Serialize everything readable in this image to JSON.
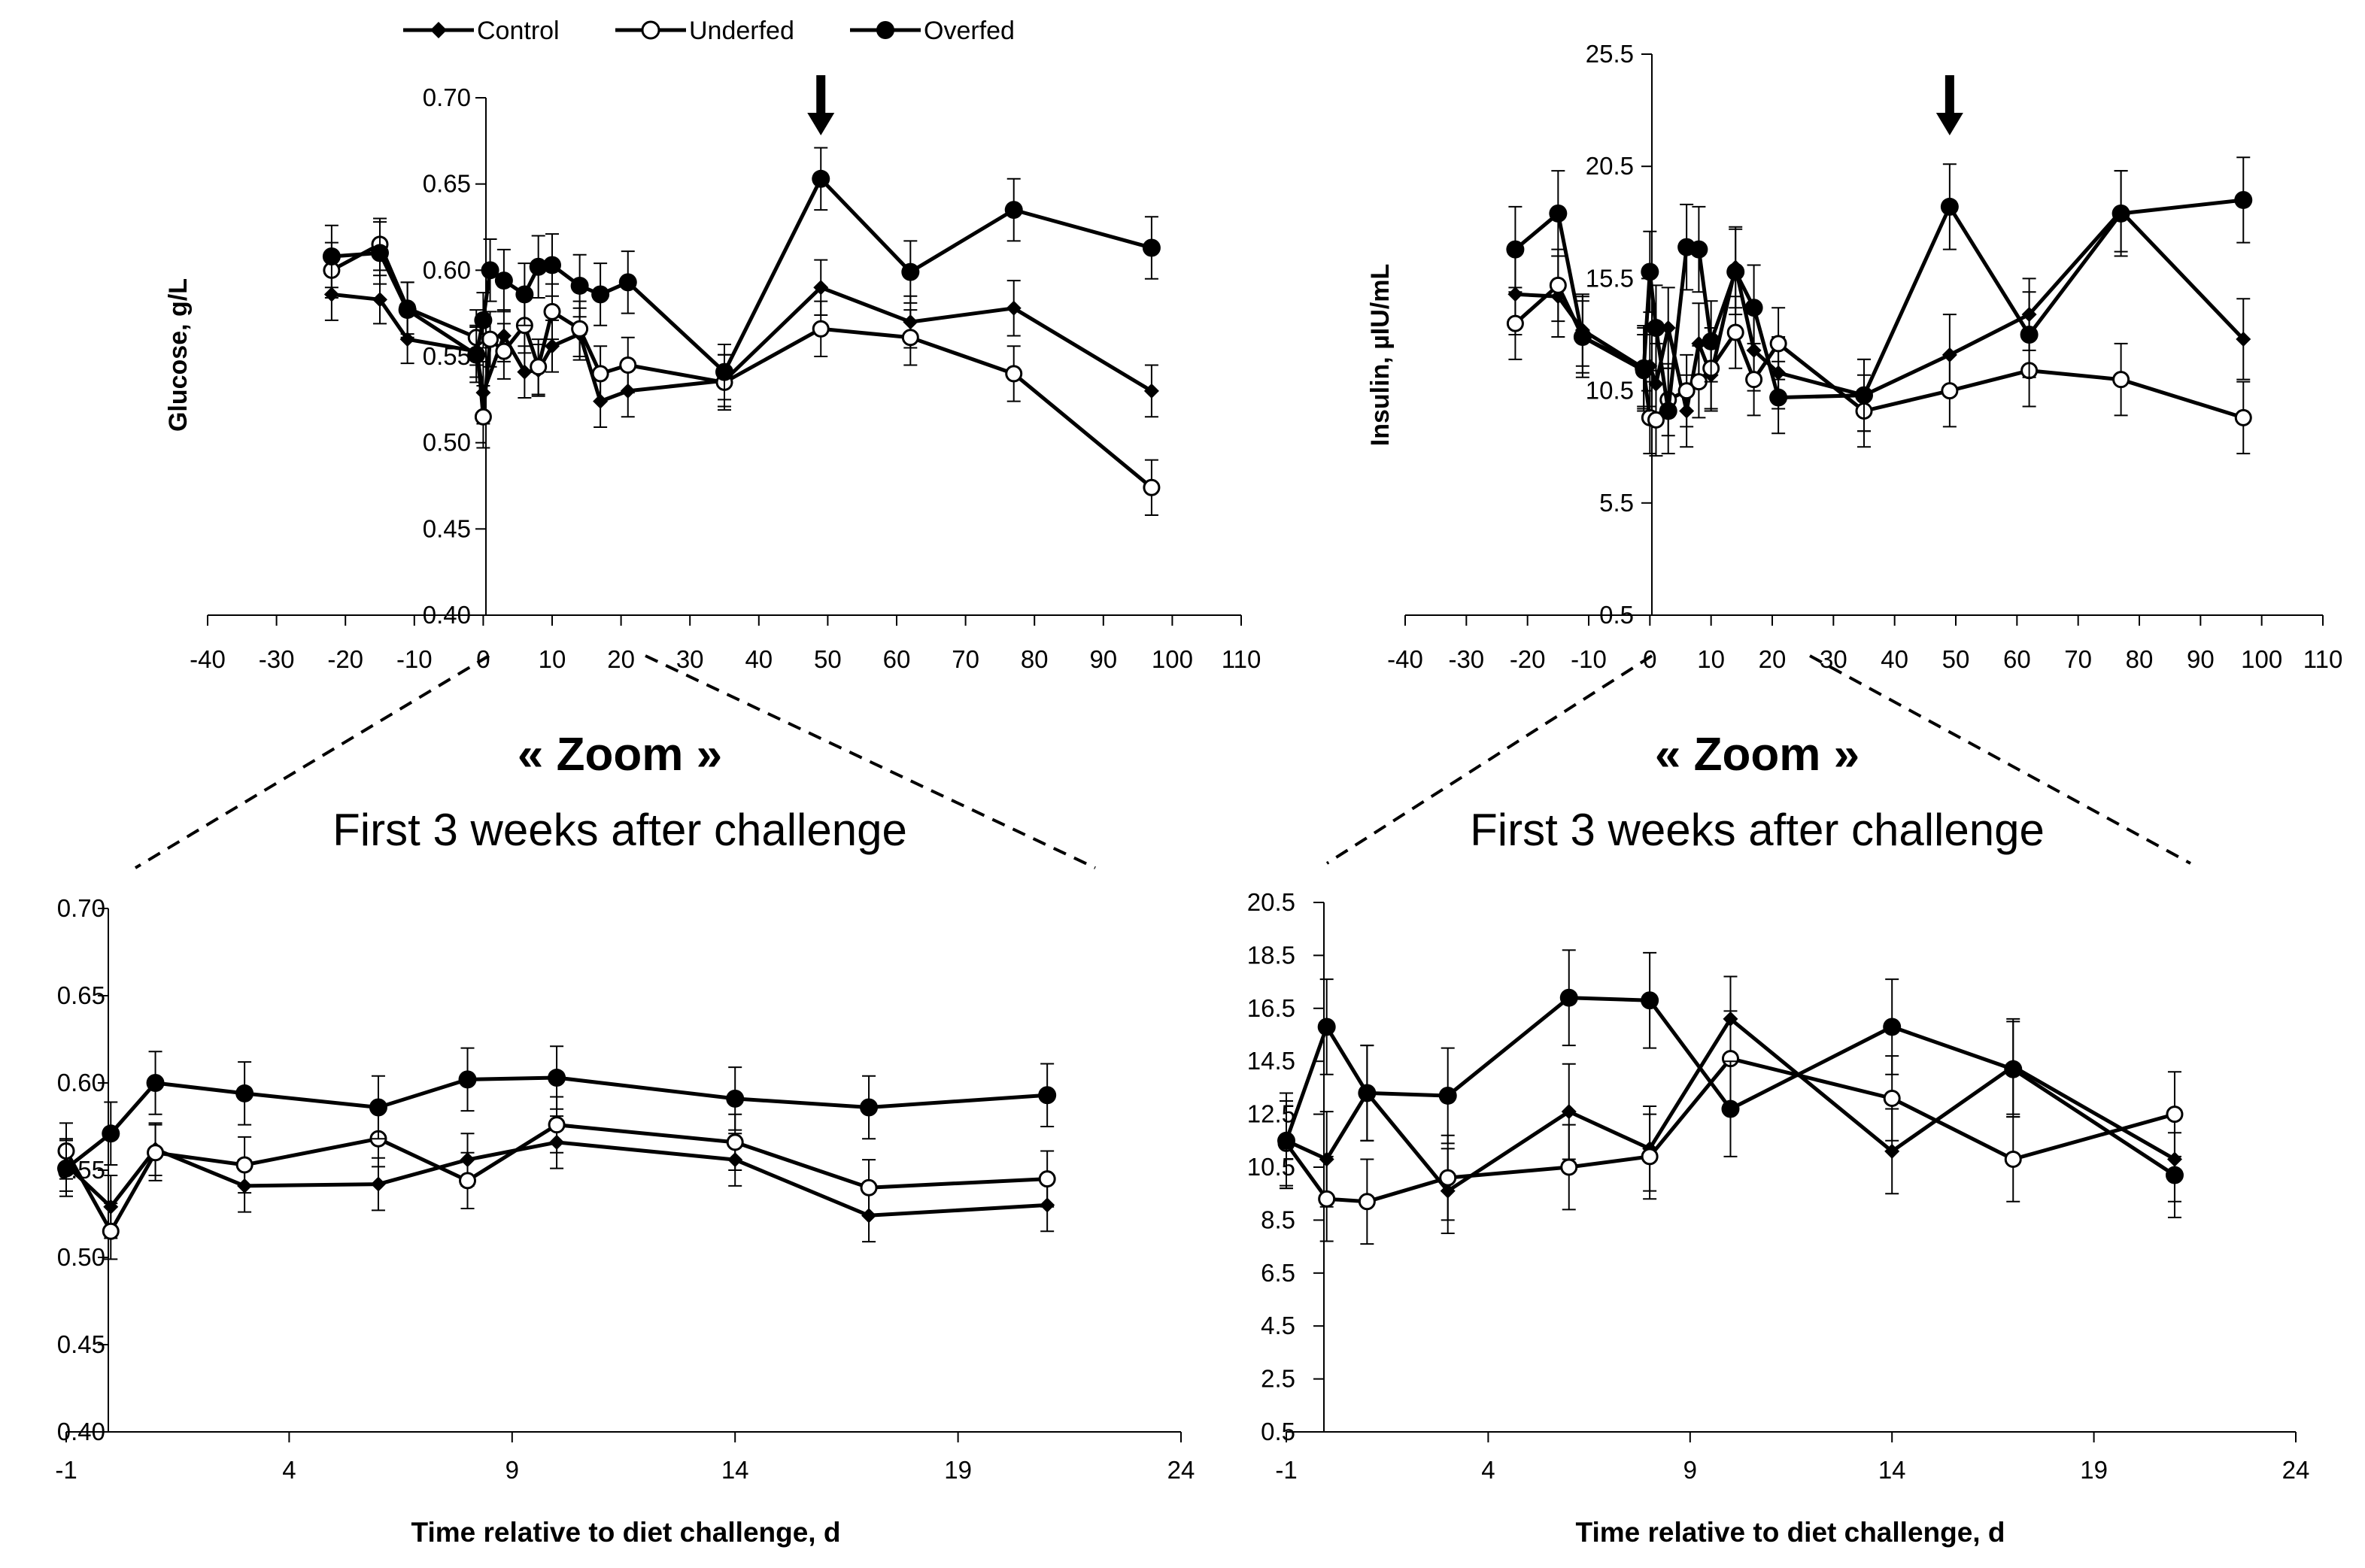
{
  "legend": [
    "Control",
    "Underfed",
    "Overfed"
  ],
  "zoom_title": "« Zoom »",
  "zoom_subtitle": "First 3 weeks after challenge",
  "chart_data": [
    {
      "id": "glucose-full",
      "type": "line",
      "ylabel": "Glucose, g/L",
      "xlabel": "",
      "xlim": [
        -40,
        110
      ],
      "ylim": [
        0.4,
        0.7
      ],
      "xticks": [
        -40,
        -30,
        -20,
        -10,
        0,
        10,
        20,
        30,
        40,
        50,
        60,
        70,
        80,
        90,
        100,
        110
      ],
      "yticks": [
        0.4,
        0.45,
        0.5,
        0.55,
        0.6,
        0.65,
        0.7
      ],
      "ydecimals": 2,
      "arrow_x": 49,
      "series": [
        {
          "name": "Control",
          "marker": "diamond",
          "x": [
            -22,
            -15,
            -11,
            -1,
            0,
            3,
            6,
            8,
            10,
            14,
            17,
            21,
            35,
            49,
            62,
            77,
            97
          ],
          "y": [
            0.586,
            0.583,
            0.56,
            0.553,
            0.529,
            0.562,
            0.541,
            0.542,
            0.556,
            0.563,
            0.524,
            0.53,
            0.536,
            0.59,
            0.57,
            0.578,
            0.53
          ],
          "err": [
            0.015,
            0.014,
            0.014,
            0.015,
            0.018,
            0.015,
            0.015,
            0.015,
            0.015,
            0.015,
            0.015,
            0.015,
            0.015,
            0.016,
            0.015,
            0.016,
            0.015
          ]
        },
        {
          "name": "Underfed",
          "marker": "open-circle",
          "x": [
            -22,
            -15,
            -11,
            -1,
            0,
            1,
            3,
            6,
            8,
            10,
            14,
            17,
            21,
            35,
            49,
            62,
            77,
            97
          ],
          "y": [
            0.6,
            0.615,
            0.578,
            0.561,
            0.515,
            0.56,
            0.553,
            0.568,
            0.544,
            0.576,
            0.566,
            0.54,
            0.545,
            0.535,
            0.566,
            0.561,
            0.54,
            0.474
          ],
          "err": [
            0.016,
            0.015,
            0.015,
            0.016,
            0.018,
            0.016,
            0.016,
            0.016,
            0.016,
            0.016,
            0.016,
            0.016,
            0.016,
            0.016,
            0.016,
            0.016,
            0.016,
            0.016
          ]
        },
        {
          "name": "Overfed",
          "marker": "filled-circle",
          "x": [
            -22,
            -15,
            -11,
            -1,
            0,
            1,
            3,
            6,
            8,
            10,
            14,
            17,
            21,
            35,
            49,
            62,
            77,
            97
          ],
          "y": [
            0.608,
            0.61,
            0.577,
            0.551,
            0.571,
            0.6,
            0.594,
            0.586,
            0.602,
            0.603,
            0.591,
            0.586,
            0.593,
            0.541,
            0.653,
            0.599,
            0.635,
            0.613
          ],
          "err": [
            0.018,
            0.018,
            0.016,
            0.016,
            0.016,
            0.018,
            0.018,
            0.018,
            0.018,
            0.018,
            0.018,
            0.018,
            0.018,
            0.016,
            0.018,
            0.018,
            0.018,
            0.018
          ]
        }
      ]
    },
    {
      "id": "insulin-full",
      "type": "line",
      "ylabel": "Insulin, µIU/mL",
      "xlabel": "",
      "xlim": [
        -40,
        110
      ],
      "ylim": [
        0.5,
        25.5
      ],
      "xticks": [
        -40,
        -30,
        -20,
        -10,
        0,
        10,
        20,
        30,
        40,
        50,
        60,
        70,
        80,
        90,
        100,
        110
      ],
      "yticks": [
        0.5,
        5.5,
        10.5,
        15.5,
        20.5,
        25.5
      ],
      "ydecimals": 1,
      "arrow_x": 49,
      "series": [
        {
          "name": "Control",
          "marker": "diamond",
          "x": [
            -22,
            -15,
            -11,
            -1,
            0,
            1,
            3,
            6,
            8,
            10,
            14,
            17,
            21,
            35,
            49,
            62,
            77,
            97
          ],
          "y": [
            14.8,
            14.7,
            13.2,
            11.5,
            11.6,
            10.8,
            13.3,
            9.6,
            12.6,
            11.2,
            16.0,
            12.3,
            11.3,
            10.3,
            12.1,
            13.9,
            18.5,
            12.8
          ],
          "err": [
            1.8,
            1.8,
            1.6,
            1.8,
            1.8,
            1.8,
            1.8,
            1.6,
            1.8,
            1.6,
            1.8,
            1.8,
            1.6,
            1.6,
            1.8,
            1.6,
            1.8,
            1.8
          ]
        },
        {
          "name": "Underfed",
          "marker": "open-circle",
          "x": [
            -22,
            -15,
            -11,
            -1,
            0,
            1,
            3,
            6,
            8,
            10,
            14,
            17,
            21,
            35,
            49,
            62,
            77,
            97
          ],
          "y": [
            13.5,
            15.2,
            12.9,
            11.4,
            9.3,
            9.2,
            10.1,
            10.5,
            10.9,
            11.5,
            13.1,
            11.0,
            12.6,
            9.6,
            10.5,
            11.4,
            11.0,
            9.3
          ],
          "err": [
            1.6,
            1.6,
            1.6,
            1.6,
            1.6,
            1.6,
            1.6,
            1.6,
            1.6,
            1.8,
            1.6,
            1.6,
            1.6,
            1.6,
            1.6,
            1.6,
            1.6,
            1.6
          ]
        },
        {
          "name": "Overfed",
          "marker": "filled-circle",
          "x": [
            -22,
            -15,
            -11,
            -1,
            0,
            1,
            3,
            6,
            8,
            10,
            14,
            17,
            21,
            35,
            49,
            62,
            77,
            97
          ],
          "y": [
            16.8,
            18.4,
            12.9,
            11.5,
            15.8,
            13.3,
            9.6,
            16.9,
            16.8,
            12.7,
            15.8,
            14.2,
            10.2,
            10.3,
            18.7,
            13.0,
            18.4,
            19.0
          ],
          "err": [
            1.9,
            1.9,
            1.8,
            1.9,
            1.8,
            1.9,
            1.9,
            1.9,
            1.9,
            1.8,
            1.9,
            1.9,
            1.6,
            1.6,
            1.9,
            1.9,
            1.9,
            1.9
          ]
        }
      ]
    },
    {
      "id": "glucose-zoom",
      "type": "line",
      "ylabel": "",
      "xlabel": "Time relative to diet challenge, d",
      "xlim": [
        -1,
        24
      ],
      "ylim": [
        0.4,
        0.7
      ],
      "xticks": [
        -1,
        4,
        9,
        14,
        19,
        24
      ],
      "yticks": [
        0.4,
        0.45,
        0.5,
        0.55,
        0.6,
        0.65,
        0.7
      ],
      "ydecimals": 2,
      "series": [
        {
          "name": "Control",
          "marker": "diamond",
          "x": [
            -1,
            0,
            1,
            3,
            6,
            8,
            10,
            14,
            17,
            21
          ],
          "y": [
            0.553,
            0.529,
            0.562,
            0.541,
            0.542,
            0.556,
            0.566,
            0.556,
            0.524,
            0.53
          ],
          "err": [
            0.015,
            0.018,
            0.015,
            0.015,
            0.015,
            0.015,
            0.015,
            0.015,
            0.015,
            0.015
          ]
        },
        {
          "name": "Underfed",
          "marker": "open-circle",
          "x": [
            -1,
            0,
            1,
            3,
            6,
            8,
            10,
            14,
            17,
            21
          ],
          "y": [
            0.561,
            0.515,
            0.56,
            0.553,
            0.568,
            0.544,
            0.576,
            0.566,
            0.54,
            0.545
          ],
          "err": [
            0.016,
            0.016,
            0.016,
            0.016,
            0.016,
            0.016,
            0.016,
            0.016,
            0.016,
            0.016
          ]
        },
        {
          "name": "Overfed",
          "marker": "filled-circle",
          "x": [
            -1,
            0,
            1,
            3,
            6,
            8,
            10,
            14,
            17,
            21
          ],
          "y": [
            0.551,
            0.571,
            0.6,
            0.594,
            0.586,
            0.602,
            0.603,
            0.591,
            0.586,
            0.593
          ],
          "err": [
            0.016,
            0.018,
            0.018,
            0.018,
            0.018,
            0.018,
            0.018,
            0.018,
            0.018,
            0.018
          ]
        }
      ]
    },
    {
      "id": "insulin-zoom",
      "type": "line",
      "ylabel": "",
      "xlabel": "Time relative to diet challenge, d",
      "xlim": [
        -1,
        24
      ],
      "ylim": [
        0.5,
        20.5
      ],
      "xticks": [
        -1,
        4,
        9,
        14,
        19,
        24
      ],
      "yticks": [
        0.5,
        2.5,
        4.5,
        6.5,
        8.5,
        10.5,
        12.5,
        14.5,
        16.5,
        18.5,
        20.5
      ],
      "ydecimals": 1,
      "series": [
        {
          "name": "Control",
          "marker": "diamond",
          "x": [
            -1,
            0,
            1,
            3,
            6,
            8,
            10,
            14,
            17,
            21
          ],
          "y": [
            11.5,
            10.8,
            13.3,
            9.6,
            12.6,
            11.2,
            16.1,
            11.1,
            14.3,
            10.8
          ],
          "err": [
            1.8,
            1.8,
            1.8,
            1.6,
            1.8,
            1.6,
            1.6,
            1.6,
            1.8,
            1.6
          ]
        },
        {
          "name": "Underfed",
          "marker": "open-circle",
          "x": [
            -1,
            0,
            1,
            3,
            6,
            8,
            10,
            14,
            17,
            21
          ],
          "y": [
            11.4,
            9.3,
            9.2,
            10.1,
            10.5,
            10.9,
            14.6,
            13.1,
            10.8,
            12.5
          ],
          "err": [
            1.6,
            1.6,
            1.6,
            1.6,
            1.6,
            1.6,
            1.8,
            1.6,
            1.6,
            1.6
          ]
        },
        {
          "name": "Overfed",
          "marker": "filled-circle",
          "x": [
            -1,
            0,
            1,
            3,
            6,
            8,
            10,
            14,
            17,
            21
          ],
          "y": [
            11.5,
            15.8,
            13.3,
            13.2,
            16.9,
            16.8,
            12.7,
            15.8,
            14.2,
            10.2
          ],
          "err": [
            1.8,
            1.8,
            1.8,
            1.8,
            1.8,
            1.8,
            1.8,
            1.8,
            1.8,
            1.6
          ]
        }
      ]
    }
  ]
}
